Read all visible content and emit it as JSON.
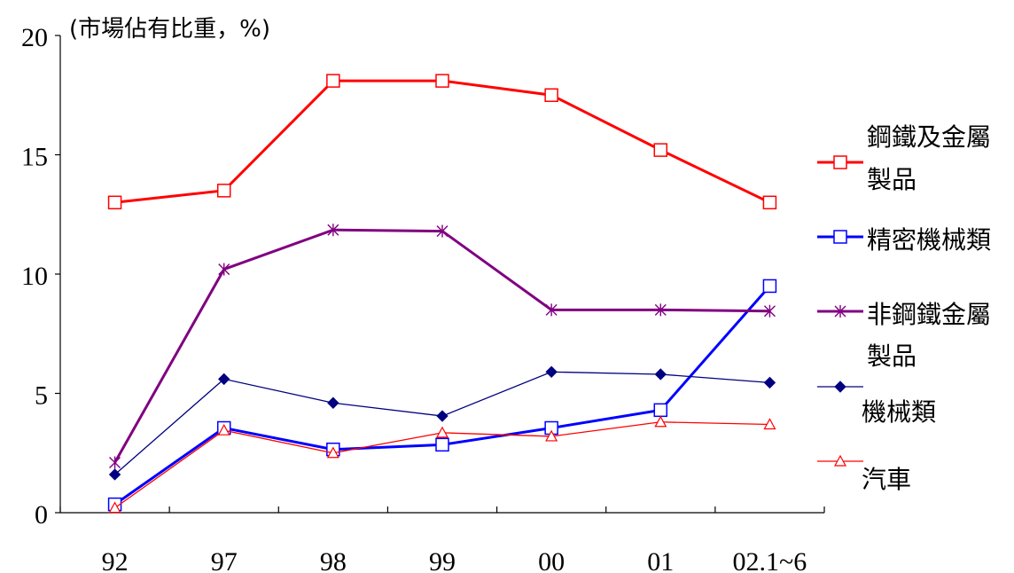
{
  "chart_data": {
    "type": "line",
    "unit_label": "(市場佔有比重，%)",
    "categories": [
      "92",
      "97",
      "98",
      "99",
      "00",
      "01",
      "02.1~6"
    ],
    "ylim": [
      0,
      20
    ],
    "yticks": [
      "0",
      "5",
      "10",
      "15",
      "20"
    ],
    "grid": false,
    "legend_position": "right",
    "series": [
      {
        "name": "鋼鐵及金屬製品",
        "legend_lines": [
          "鋼鐵及金屬",
          "製品"
        ],
        "color": "#ff0000",
        "marker": "square",
        "values": [
          13.0,
          13.5,
          18.1,
          18.1,
          17.5,
          15.2,
          13.0
        ]
      },
      {
        "name": "精密機械類",
        "legend_lines": [
          "精密機械類"
        ],
        "color": "#0000ff",
        "marker": "square",
        "values": [
          0.35,
          3.55,
          2.65,
          2.85,
          3.55,
          4.3,
          9.5
        ]
      },
      {
        "name": "非鋼鐵金屬製品",
        "legend_lines": [
          "非鋼鐵金屬",
          "製品"
        ],
        "color": "#800080",
        "marker": "asterisk",
        "values": [
          2.1,
          10.2,
          11.85,
          11.8,
          8.5,
          8.5,
          8.45
        ]
      },
      {
        "name": "機械類",
        "legend_lines": [
          "機械類"
        ],
        "color": "#000080",
        "marker": "diamond",
        "values": [
          1.6,
          5.6,
          4.6,
          4.05,
          5.9,
          5.8,
          5.45
        ]
      },
      {
        "name": "汽車",
        "legend_lines": [
          "汽車"
        ],
        "color": "#ff0000",
        "marker": "triangle",
        "values": [
          0.2,
          3.45,
          2.5,
          3.35,
          3.2,
          3.8,
          3.7
        ]
      }
    ]
  }
}
